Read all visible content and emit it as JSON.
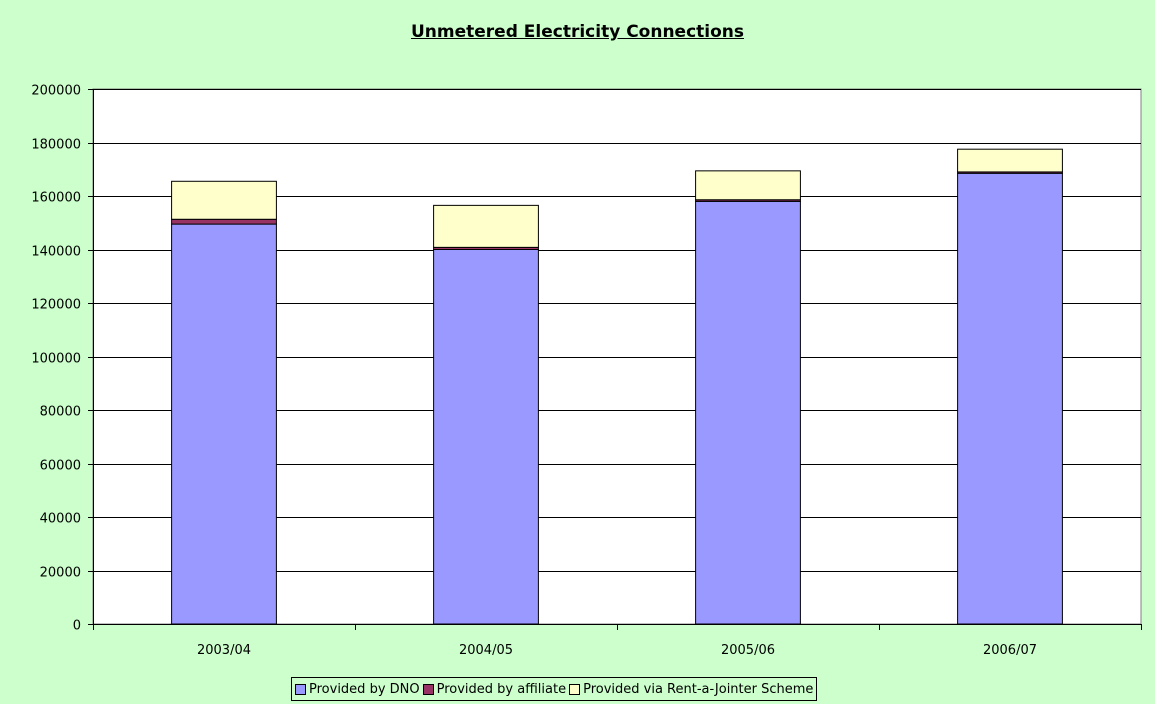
{
  "chart_data": {
    "type": "bar",
    "stacked": true,
    "title": "Unmetered Electricity Connections",
    "xlabel": "",
    "ylabel": "",
    "categories": [
      "2003/04",
      "2004/05",
      "2005/06",
      "2006/07"
    ],
    "series": [
      {
        "name": "Provided by DNO",
        "color": "#9999ff",
        "values": [
          149500,
          140000,
          158000,
          168500
        ]
      },
      {
        "name": "Provided by affiliate",
        "color": "#993366",
        "values": [
          1800,
          800,
          600,
          500
        ]
      },
      {
        "name": "Provided via Rent-a-Jointer Scheme",
        "color": "#ffffcc",
        "values": [
          14200,
          15700,
          10800,
          8500
        ]
      }
    ],
    "ylim": [
      0,
      200000
    ],
    "yticks": [
      0,
      20000,
      40000,
      60000,
      80000,
      100000,
      120000,
      140000,
      160000,
      180000,
      200000
    ],
    "grid": true,
    "legend": "bottom",
    "background": "#ccffcc",
    "plot_background": "#ffffff"
  }
}
